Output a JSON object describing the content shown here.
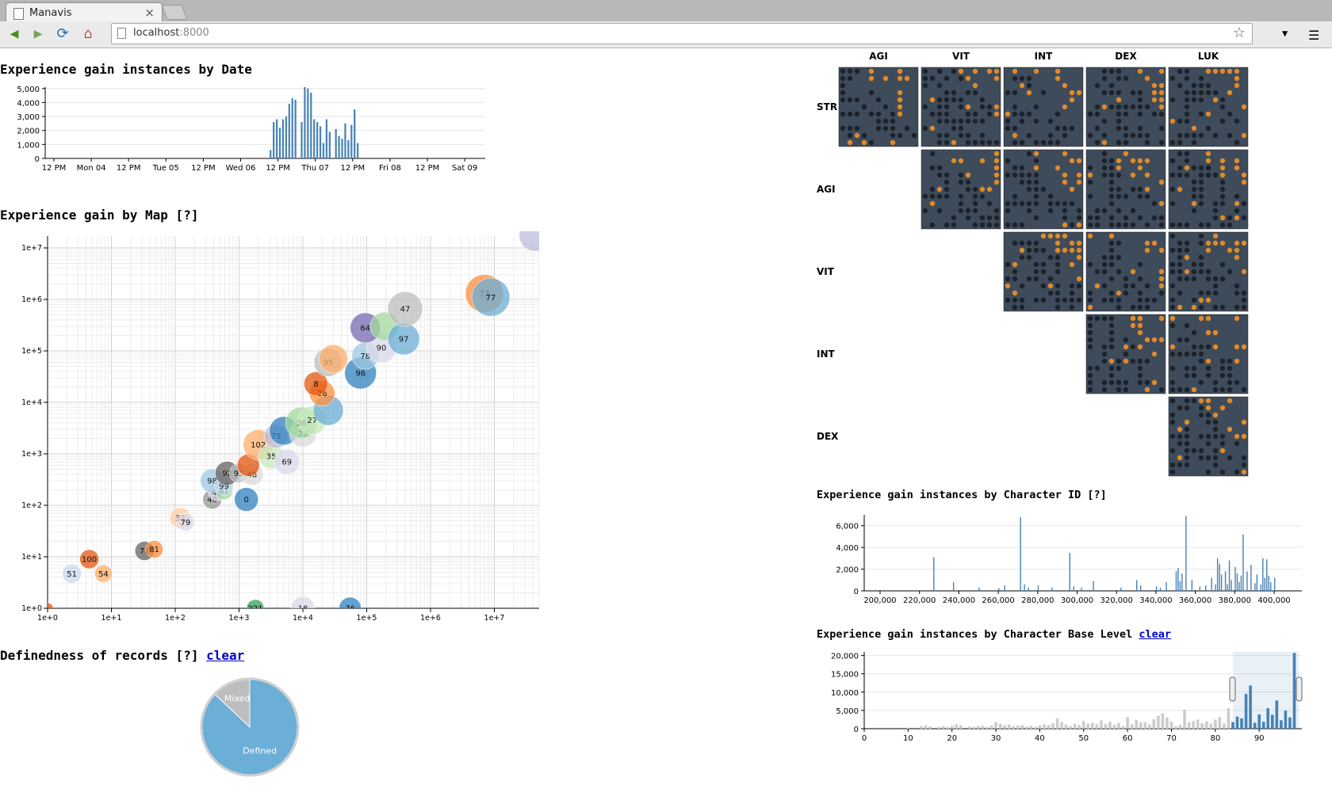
{
  "browser": {
    "tab_title": "Manavis",
    "tab_close": "×",
    "url_host": "localhost",
    "url_port": ":8000"
  },
  "date_chart": {
    "title": "Experience gain instances by Date",
    "yticks": [
      "5,000",
      "4,000",
      "3,000",
      "2,000",
      "1,000",
      "0"
    ],
    "xticks": [
      "12 PM",
      "Mon 04",
      "12 PM",
      "Tue 05",
      "12 PM",
      "Wed 06",
      "12 PM",
      "Thu 07",
      "12 PM",
      "Fri 08",
      "12 PM",
      "Sat 09"
    ]
  },
  "map_chart": {
    "title": "Experience gain by Map [?]",
    "xticks": [
      "1e+0",
      "1e+1",
      "1e+2",
      "1e+3",
      "1e+4",
      "1e+5",
      "1e+6",
      "1e+7"
    ],
    "yticks": [
      "1e+7",
      "1e+6",
      "1e+5",
      "1e+4",
      "1e+3",
      "1e+2",
      "1e+1",
      "1e+0"
    ]
  },
  "definedness": {
    "title": "Definedness of records [?]",
    "clear_label": "clear",
    "slices": [
      {
        "label": "Mixed",
        "value": 0.13,
        "color": "#bdbdbd"
      },
      {
        "label": "Defined",
        "value": 0.87,
        "color": "#6baed6"
      }
    ]
  },
  "stat_matrix": {
    "cols": [
      "AGI",
      "VIT",
      "INT",
      "DEX",
      "LUK"
    ],
    "rows": [
      "STR",
      "AGI",
      "VIT",
      "INT",
      "DEX"
    ],
    "colors": {
      "bg": "#3e4b5a",
      "dark": "#1c222b",
      "orange": "#e08a2a"
    }
  },
  "char_id_chart": {
    "title": "Experience gain instances by Character ID [?]",
    "yticks": [
      "6,000",
      "4,000",
      "2,000",
      "0"
    ],
    "xticks": [
      "200,000",
      "220,000",
      "240,000",
      "260,000",
      "280,000",
      "300,000",
      "320,000",
      "340,000",
      "360,000",
      "380,000",
      "400,000"
    ]
  },
  "base_level_chart": {
    "title": "Experience gain instances by Character Base Level",
    "clear_label": "clear",
    "yticks": [
      "20,000",
      "15,000",
      "10,000",
      "5,000",
      "0"
    ],
    "xticks": [
      "0",
      "10",
      "20",
      "30",
      "40",
      "50",
      "60",
      "70",
      "80",
      "90"
    ]
  },
  "chart_data": [
    {
      "type": "bar",
      "title": "Experience gain instances by Date",
      "x_unit": "hours",
      "ylim": [
        0,
        5100
      ],
      "x": [
        78,
        79,
        80,
        81,
        82,
        83,
        84,
        85,
        86,
        88,
        89,
        90,
        91,
        92,
        93,
        94,
        95,
        96,
        97,
        99,
        100,
        101,
        102,
        103,
        104,
        105,
        106
      ],
      "values": [
        600,
        2600,
        2800,
        2200,
        2800,
        3000,
        3900,
        4300,
        4200,
        2600,
        5100,
        5000,
        4700,
        2800,
        2600,
        2300,
        1100,
        2800,
        1900,
        2100,
        1600,
        1400,
        2500,
        1300,
        2400,
        3500,
        1100
      ]
    },
    {
      "type": "scatter",
      "title": "Experience gain by Map [?]",
      "xscale": "log",
      "yscale": "log",
      "xlim": [
        1,
        50000000
      ],
      "ylim": [
        1,
        10000000
      ],
      "points": [
        {
          "label": "51",
          "x": 2.4,
          "y": 4.7,
          "r": 12,
          "c": "#c6dbef"
        },
        {
          "label": "54",
          "x": 7.5,
          "y": 4.7,
          "r": 11,
          "c": "#fdae6b"
        },
        {
          "label": "100",
          "x": 4.5,
          "y": 9,
          "r": 12,
          "c": "#e6550d"
        },
        {
          "label": "71",
          "x": 33,
          "y": 13,
          "r": 12,
          "c": "#636363"
        },
        {
          "label": "81",
          "x": 47,
          "y": 14,
          "r": 11,
          "c": "#fd8d3c"
        },
        {
          "label": "32",
          "x": 120,
          "y": 57,
          "r": 13,
          "c": "#fdd0a2"
        },
        {
          "label": "79",
          "x": 145,
          "y": 47,
          "r": 11,
          "c": "#dadaeb"
        },
        {
          "label": "46",
          "x": 380,
          "y": 130,
          "r": 12,
          "c": "#969696"
        },
        {
          "label": "0",
          "x": 1300,
          "y": 130,
          "r": 15,
          "c": "#3182bd"
        },
        {
          "label": "49",
          "x": 450,
          "y": 180,
          "r": 11,
          "c": "#dadaeb"
        },
        {
          "label": "61",
          "x": 580,
          "y": 190,
          "r": 11,
          "c": "#a1d99b"
        },
        {
          "label": "98",
          "x": 380,
          "y": 300,
          "r": 15,
          "c": "#9ecae1"
        },
        {
          "label": "99",
          "x": 580,
          "y": 240,
          "r": 12,
          "c": "#c6dbef"
        },
        {
          "label": "92",
          "x": 650,
          "y": 420,
          "r": 15,
          "c": "#636363"
        },
        {
          "label": "93",
          "x": 990,
          "y": 420,
          "r": 12,
          "c": "#bdbdbd"
        },
        {
          "label": "48",
          "x": 1600,
          "y": 400,
          "r": 14,
          "c": "#d9d9d9"
        },
        {
          "label": "",
          "x": 1400,
          "y": 600,
          "r": 14,
          "c": "#e6550d"
        },
        {
          "label": "102",
          "x": 2000,
          "y": 1500,
          "r": 19,
          "c": "#fdae6b"
        },
        {
          "label": "35",
          "x": 3200,
          "y": 900,
          "r": 16,
          "c": "#c7e9c0"
        },
        {
          "label": "69",
          "x": 5600,
          "y": 700,
          "r": 16,
          "c": "#dadaeb"
        },
        {
          "label": "75",
          "x": 3800,
          "y": 2200,
          "r": 15,
          "c": "#bcbddc"
        },
        {
          "label": "",
          "x": 5000,
          "y": 2800,
          "r": 18,
          "c": "#3182bd"
        },
        {
          "label": "23",
          "x": 10000,
          "y": 2500,
          "r": 17,
          "c": "#d9d9d9"
        },
        {
          "label": "36",
          "x": 9500,
          "y": 4000,
          "r": 20,
          "c": "#a1d99b"
        },
        {
          "label": "27",
          "x": 14000,
          "y": 4500,
          "r": 18,
          "c": "#c7e9c0"
        },
        {
          "label": "",
          "x": 25000,
          "y": 7000,
          "r": 19,
          "c": "#6baed6"
        },
        {
          "label": "26",
          "x": 20000,
          "y": 15000,
          "r": 16,
          "c": "#fd8d3c"
        },
        {
          "label": "8",
          "x": 16000,
          "y": 23000,
          "r": 15,
          "c": "#e6550d"
        },
        {
          "label": "95",
          "x": 25000,
          "y": 60000,
          "r": 18,
          "c": "#bdbdbd"
        },
        {
          "label": "",
          "x": 30000,
          "y": 70000,
          "r": 18,
          "c": "#fdae6b"
        },
        {
          "label": "96",
          "x": 80000,
          "y": 37000,
          "r": 20,
          "c": "#3182bd"
        },
        {
          "label": "78",
          "x": 95000,
          "y": 80000,
          "r": 17,
          "c": "#9ecae1"
        },
        {
          "label": "90",
          "x": 170000,
          "y": 115000,
          "r": 19,
          "c": "#dadaeb"
        },
        {
          "label": "64",
          "x": 95000,
          "y": 280000,
          "r": 19,
          "c": "#756bb1"
        },
        {
          "label": "",
          "x": 190000,
          "y": 300000,
          "r": 18,
          "c": "#a1d99b"
        },
        {
          "label": "97",
          "x": 380000,
          "y": 170000,
          "r": 20,
          "c": "#6baed6"
        },
        {
          "label": "47",
          "x": 400000,
          "y": 650000,
          "r": 22,
          "c": "#bdbdbd"
        },
        {
          "label": "73",
          "x": 7000000,
          "y": 1300000,
          "r": 24,
          "c": "#fd8d3c"
        },
        {
          "label": "77",
          "x": 8800000,
          "y": 1100000,
          "r": 24,
          "c": "#6baed6"
        },
        {
          "label": "221",
          "x": 1800,
          "y": 1,
          "r": 11,
          "c": "#31a354"
        },
        {
          "label": "18",
          "x": 10000,
          "y": 1,
          "r": 15,
          "c": "#dadaeb"
        },
        {
          "label": "76",
          "x": 55000,
          "y": 1,
          "r": 14,
          "c": "#3182bd"
        },
        {
          "label": "",
          "x": 1,
          "y": 1,
          "r": 7,
          "c": "#e6550d"
        }
      ]
    },
    {
      "type": "pie",
      "title": "Definedness of records [?]",
      "labels": [
        "Mixed",
        "Defined"
      ],
      "values": [
        0.13,
        0.87
      ]
    },
    {
      "type": "bar",
      "title": "Experience gain instances by Character ID [?]",
      "xlim": [
        200000,
        410000
      ],
      "ylim": [
        0,
        7000
      ],
      "x": [
        227000,
        237000,
        250000,
        260000,
        263000,
        271000,
        273000,
        275000,
        280000,
        287000,
        296000,
        298000,
        302000,
        308000,
        322000,
        330000,
        332000,
        340000,
        342000,
        345000,
        350000,
        351000,
        352000,
        353000,
        355000,
        358000,
        362000,
        365000,
        368000,
        370000,
        371000,
        372000,
        373000,
        375000,
        376000,
        377000,
        378000,
        380000,
        381000,
        382000,
        383000,
        384000,
        386000,
        388000,
        390000,
        391000,
        393000,
        394000,
        395000,
        396000,
        397000,
        398000,
        400000
      ],
      "values": [
        3100,
        800,
        300,
        250,
        500,
        6800,
        600,
        300,
        500,
        300,
        3500,
        400,
        300,
        900,
        300,
        1000,
        500,
        400,
        300,
        800,
        1800,
        2100,
        900,
        1600,
        6900,
        1000,
        400,
        500,
        1200,
        600,
        3000,
        2500,
        1500,
        1800,
        600,
        2800,
        1000,
        2200,
        1600,
        800,
        1400,
        5200,
        1800,
        2400,
        700,
        1500,
        600,
        3000,
        1200,
        2900,
        1400,
        800,
        1200
      ]
    },
    {
      "type": "bar",
      "title": "Experience gain instances by Character Base Level",
      "xlim": [
        0,
        99
      ],
      "ylim": [
        0,
        21000
      ],
      "brush": [
        84,
        99
      ],
      "x": [
        10,
        13,
        14,
        15,
        17,
        18,
        19,
        20,
        21,
        22,
        24,
        25,
        26,
        27,
        28,
        29,
        30,
        31,
        32,
        33,
        34,
        35,
        36,
        37,
        38,
        39,
        40,
        41,
        42,
        43,
        44,
        45,
        46,
        47,
        48,
        49,
        50,
        51,
        52,
        53,
        54,
        55,
        56,
        57,
        58,
        59,
        60,
        61,
        62,
        63,
        64,
        65,
        66,
        67,
        68,
        69,
        70,
        71,
        72,
        73,
        74,
        75,
        76,
        77,
        78,
        79,
        80,
        81,
        82,
        83,
        84,
        85,
        86,
        87,
        88,
        89,
        90,
        91,
        92,
        93,
        94,
        95,
        96,
        97,
        98
      ],
      "values": [
        300,
        700,
        900,
        600,
        500,
        700,
        400,
        800,
        1200,
        900,
        600,
        500,
        700,
        800,
        500,
        900,
        1800,
        1300,
        900,
        1100,
        700,
        900,
        1000,
        600,
        800,
        500,
        900,
        1200,
        1000,
        1500,
        2800,
        1800,
        1100,
        700,
        1300,
        1000,
        2100,
        1400,
        1600,
        1200,
        2300,
        1300,
        1900,
        1000,
        1500,
        700,
        3200,
        1200,
        2400,
        1700,
        1800,
        1200,
        2600,
        3500,
        4200,
        3100,
        1900,
        700,
        1000,
        5200,
        1800,
        2100,
        2500,
        1500,
        2000,
        1400,
        2500,
        3200,
        1400,
        5600,
        1800,
        3300,
        2800,
        9500,
        11800,
        1600,
        3900,
        1900,
        5600,
        3800,
        7700,
        2300,
        4900,
        3100,
        20700
      ]
    }
  ]
}
